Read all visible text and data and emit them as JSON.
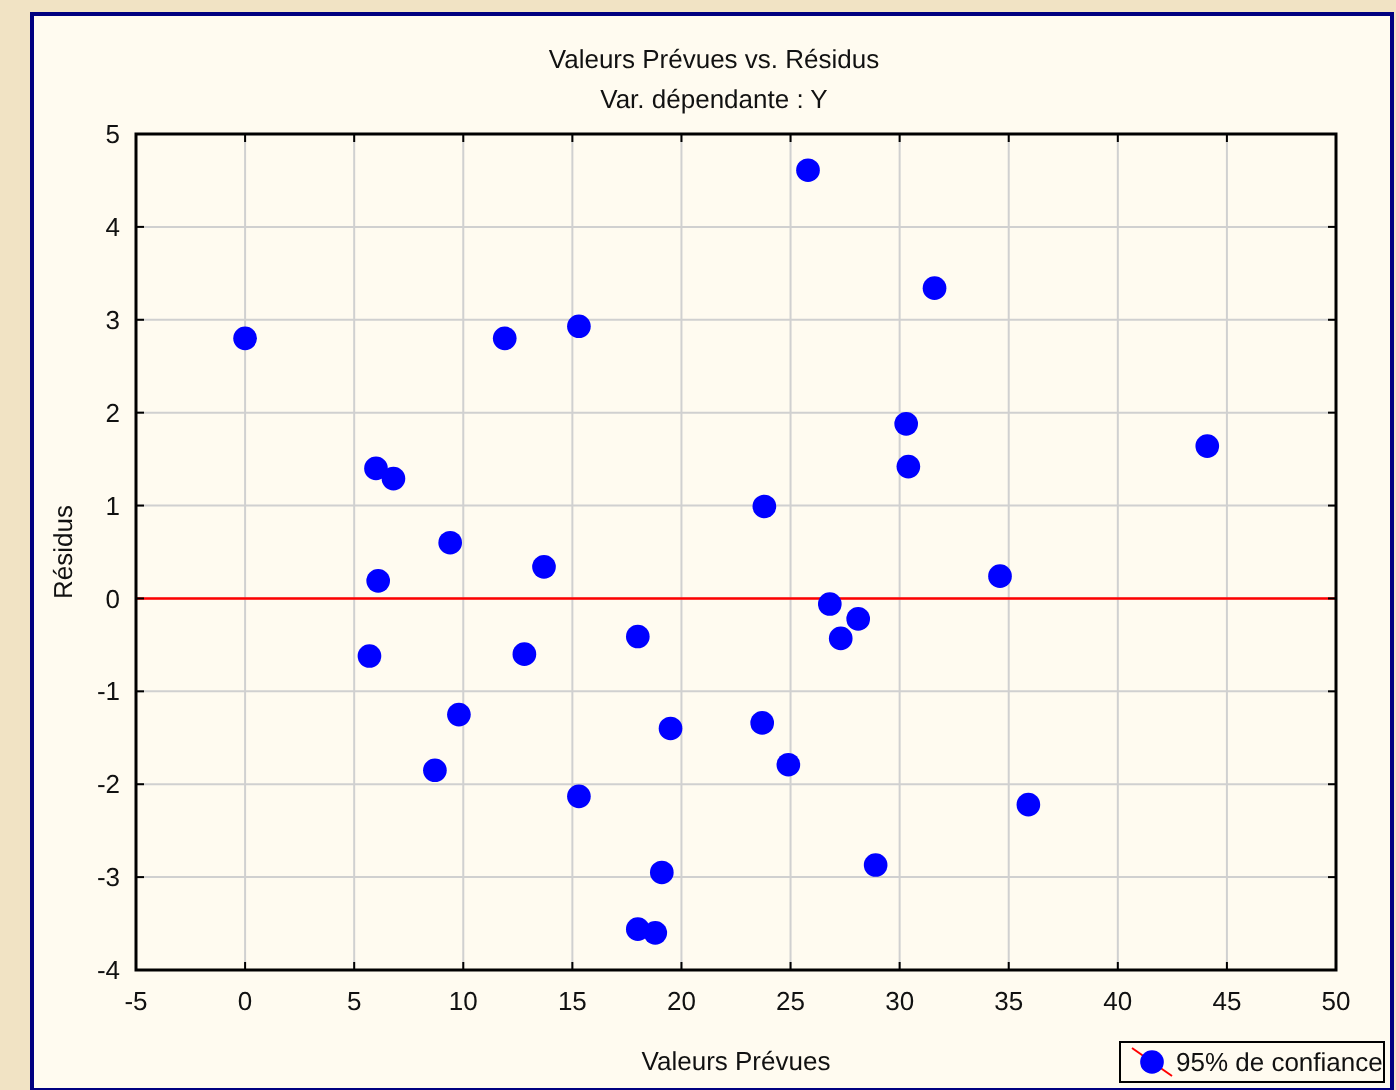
{
  "chart_data": {
    "type": "scatter",
    "title": "Valeurs Prévues vs. Résidus",
    "subtitle": "Var. dépendante : Y",
    "xlabel": "Valeurs Prévues",
    "ylabel": "Résidus",
    "xlim": [
      -5,
      50
    ],
    "xticks": [
      -5,
      0,
      5,
      10,
      15,
      20,
      25,
      30,
      35,
      40,
      45,
      50
    ],
    "ylim": [
      -4,
      5
    ],
    "yticks": [
      -4,
      -3,
      -2,
      -1,
      0,
      1,
      2,
      3,
      4,
      5
    ],
    "grid": true,
    "marker": "circle",
    "legend": "bottom right",
    "ref_lines": [
      {
        "axis": "y",
        "value": 0,
        "color": "#ff0000"
      }
    ],
    "series": [
      {
        "name": "95% de confiance",
        "color": "#0000ff",
        "x": [
          0,
          11.9,
          15.3,
          6.0,
          6.8,
          9.4,
          6.1,
          13.7,
          5.7,
          12.8,
          18.0,
          9.8,
          8.7,
          15.3,
          19.5,
          19.1,
          18.0,
          18.8,
          25.8,
          31.6,
          30.3,
          30.4,
          44.1,
          23.8,
          34.6,
          26.8,
          28.1,
          27.3,
          23.7,
          24.9,
          35.9,
          28.9
        ],
        "values": [
          2.8,
          2.8,
          2.93,
          1.4,
          1.29,
          0.6,
          0.19,
          0.34,
          -0.62,
          -0.6,
          -0.41,
          -1.25,
          -1.85,
          -2.13,
          -1.4,
          -2.95,
          -3.56,
          -3.6,
          4.61,
          3.34,
          1.88,
          1.42,
          1.64,
          0.99,
          0.24,
          -0.06,
          -0.22,
          -0.43,
          -1.34,
          -1.79,
          -2.22,
          -2.87
        ]
      }
    ]
  }
}
